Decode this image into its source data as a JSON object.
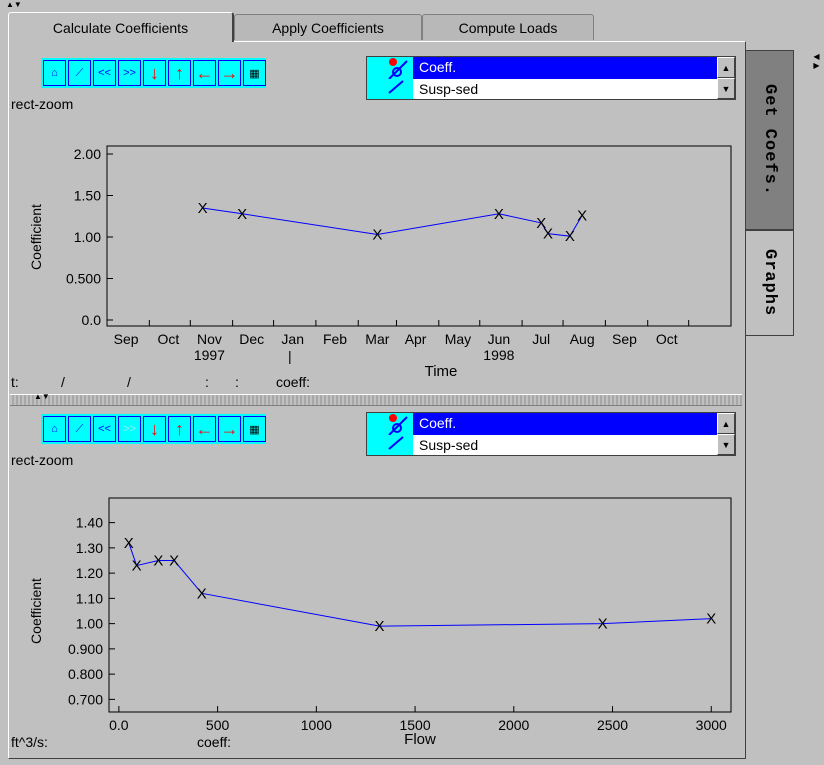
{
  "tabs": [
    {
      "label": "Calculate Coefficients",
      "active": true
    },
    {
      "label": "Apply Coefficients",
      "active": false
    },
    {
      "label": "Compute Loads",
      "active": false
    }
  ],
  "side_tabs": [
    {
      "label": "Get Coefs.",
      "active": false
    },
    {
      "label": "Graphs",
      "active": true
    }
  ],
  "toolbar_icons": [
    "home-icon",
    "graph-icon",
    "rewind-icon",
    "fast-forward-icon",
    "arrow-down-icon",
    "arrow-up-icon",
    "arrow-left-icon",
    "arrow-right-icon",
    "table-icon"
  ],
  "toolbar_text": {
    "rewind": "<<",
    "forward": ">>"
  },
  "series_list": {
    "items": [
      "Coeff.",
      "Susp-sed"
    ]
  },
  "zoom_mode": "rect-zoom",
  "panel1": {
    "readout": {
      "t_label": "t:",
      "t_sep1": "/",
      "t_sep2": "/",
      "t_sep3": ":",
      "t_sep4": ":",
      "coeff_label": "coeff:"
    },
    "cursor_marker": "|"
  },
  "panel2": {
    "readout": {
      "flow_label": "ft^3/s:",
      "coeff_label": "coeff:"
    }
  },
  "colors": {
    "line": "#0000ff",
    "toolbar": "#00ffff",
    "selection": "#0000ff"
  },
  "chart_data": [
    {
      "type": "line",
      "xlabel": "Time",
      "ylabel": "Coefficient",
      "ylim": [
        0,
        2.0
      ],
      "yticks": [
        "0.0",
        "0.500",
        "1.00",
        "1.50",
        "2.00"
      ],
      "xticks": [
        "Sep",
        "Oct",
        "Nov",
        "Dec",
        "Jan",
        "Feb",
        "Mar",
        "Apr",
        "May",
        "Jun",
        "Jul",
        "Aug",
        "Sep",
        "Oct"
      ],
      "year_labels": [
        {
          "label": "1997",
          "under": "Nov"
        },
        {
          "label": "1998",
          "under": "Jun"
        }
      ],
      "x": [
        "1997-10-10",
        "1997-11-08",
        "1998-02-15",
        "1998-05-15",
        "1998-06-15",
        "1998-06-20",
        "1998-07-06",
        "1998-07-15"
      ],
      "values": [
        1.35,
        1.28,
        1.03,
        1.28,
        1.17,
        1.04,
        1.01,
        1.26
      ],
      "grid": false
    },
    {
      "type": "line",
      "xlabel": "Flow",
      "ylabel": "Coefficient",
      "ylim": [
        0.65,
        1.45
      ],
      "xlim": [
        -50,
        3100
      ],
      "yticks": [
        "0.700",
        "0.800",
        "0.900",
        "1.00",
        "1.10",
        "1.20",
        "1.30",
        "1.40"
      ],
      "xticks": [
        "0.0",
        "500",
        "1000",
        "1500",
        "2000",
        "2500",
        "3000"
      ],
      "x": [
        50,
        90,
        200,
        280,
        420,
        1320,
        2450,
        3000
      ],
      "values": [
        1.32,
        1.23,
        1.25,
        1.25,
        1.12,
        0.99,
        1.0,
        1.02
      ],
      "grid": false
    }
  ]
}
